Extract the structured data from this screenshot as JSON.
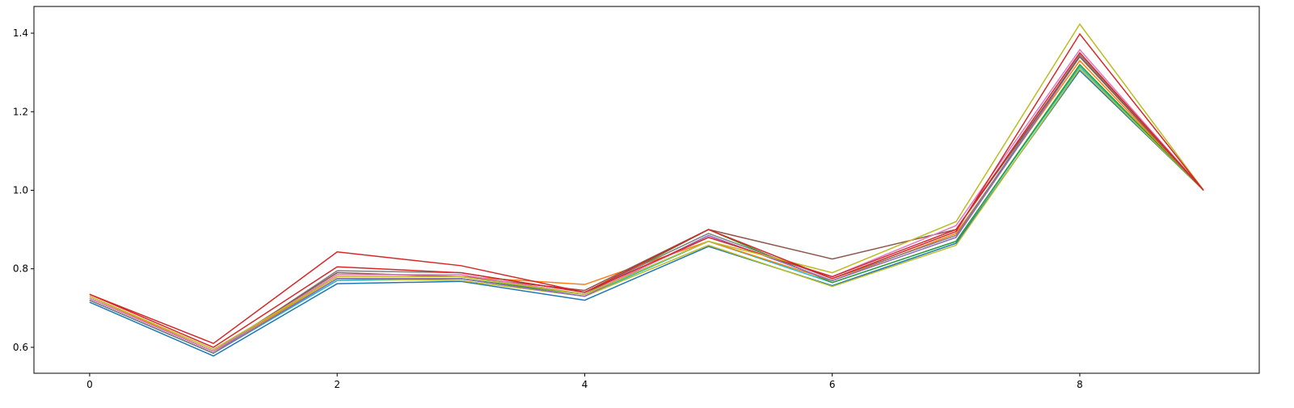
{
  "chart_data": {
    "type": "line",
    "xlim": [
      -0.45,
      9.45
    ],
    "xticks": [
      0,
      2,
      4,
      6,
      8
    ],
    "ylim": [
      0.534,
      1.468
    ],
    "yticks": [
      0.6,
      0.8,
      {
        "value": 1,
        "label": "1.0"
      },
      1.2,
      1.4
    ],
    "x": [
      0,
      1,
      2,
      3,
      4,
      5,
      6,
      7,
      8,
      9
    ],
    "series": [
      {
        "color": "#1f77b4",
        "values": [
          0.715,
          0.578,
          0.762,
          0.768,
          0.72,
          0.857,
          0.757,
          0.865,
          1.305,
          1.0
        ]
      },
      {
        "color": "#17becf",
        "values": [
          0.72,
          0.585,
          0.77,
          0.775,
          0.73,
          0.87,
          0.765,
          0.87,
          1.315,
          1.0
        ]
      },
      {
        "color": "#bcbd22",
        "values": [
          0.725,
          0.59,
          0.775,
          0.77,
          0.73,
          0.86,
          0.755,
          0.86,
          1.31,
          1.0
        ]
      },
      {
        "color": "#2ca02c",
        "values": [
          0.72,
          0.585,
          0.775,
          0.775,
          0.735,
          0.9,
          0.765,
          0.87,
          1.32,
          1.0
        ]
      },
      {
        "color": "#ff7f0e",
        "values": [
          0.73,
          0.59,
          0.78,
          0.78,
          0.76,
          0.87,
          0.77,
          0.89,
          1.33,
          1.0
        ]
      },
      {
        "color": "#9467bd",
        "values": [
          0.72,
          0.585,
          0.775,
          0.775,
          0.73,
          0.885,
          0.77,
          0.88,
          1.34,
          1.0
        ]
      },
      {
        "color": "#7f7f7f",
        "values": [
          0.72,
          0.585,
          0.795,
          0.79,
          0.74,
          0.89,
          0.775,
          0.885,
          1.345,
          1.0
        ]
      },
      {
        "color": "#8c564b",
        "values": [
          0.725,
          0.59,
          0.79,
          0.78,
          0.745,
          0.9,
          0.825,
          0.9,
          1.34,
          1.0
        ]
      },
      {
        "color": "#e377c2",
        "values": [
          0.725,
          0.59,
          0.785,
          0.785,
          0.735,
          0.88,
          0.78,
          0.91,
          1.358,
          1.0
        ]
      },
      {
        "color": "#d62728",
        "values": [
          0.735,
          0.6,
          0.805,
          0.79,
          0.74,
          0.88,
          0.78,
          0.9,
          1.35,
          1.0
        ]
      },
      {
        "color": "#bcbd22",
        "values": [
          0.73,
          0.595,
          0.78,
          0.78,
          0.735,
          0.87,
          0.79,
          0.92,
          1.423,
          1.0
        ]
      },
      {
        "color": "#d62728",
        "values": [
          0.735,
          0.61,
          0.843,
          0.808,
          0.74,
          0.9,
          0.775,
          0.895,
          1.398,
          1.0
        ]
      }
    ]
  }
}
